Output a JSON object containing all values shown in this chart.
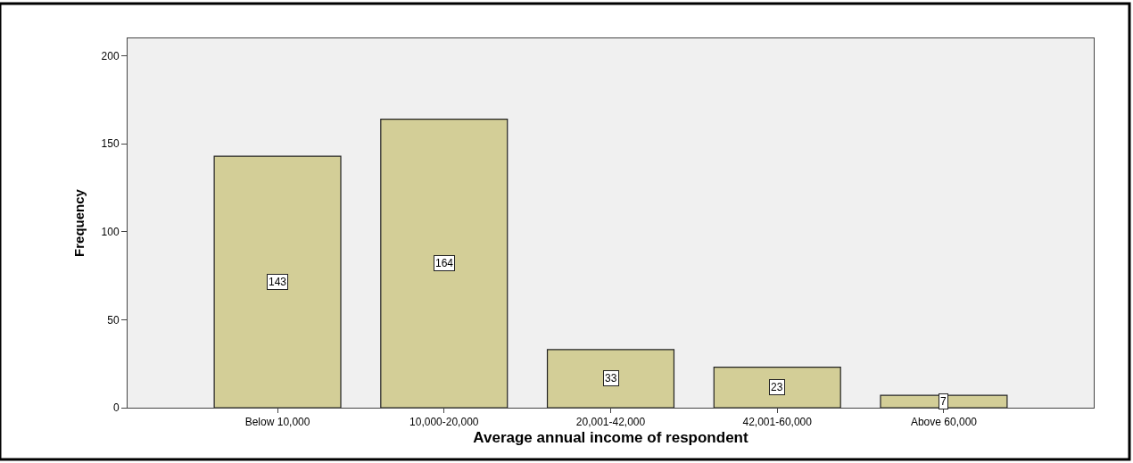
{
  "chart_data": {
    "type": "bar",
    "xlabel": "Average annual income of respondent",
    "ylabel": "Frequency",
    "categories": [
      "Below 10,000",
      "10,000-20,000",
      "20,001-42,000",
      "42,001-60,000",
      "Above 60,000"
    ],
    "values": [
      143,
      164,
      33,
      23,
      7
    ],
    "color": "#d3ce97",
    "ylim": [
      0,
      210
    ],
    "yticks": [
      0,
      50,
      100,
      150,
      200
    ],
    "grid": false,
    "legend": false,
    "data_labels": true
  }
}
